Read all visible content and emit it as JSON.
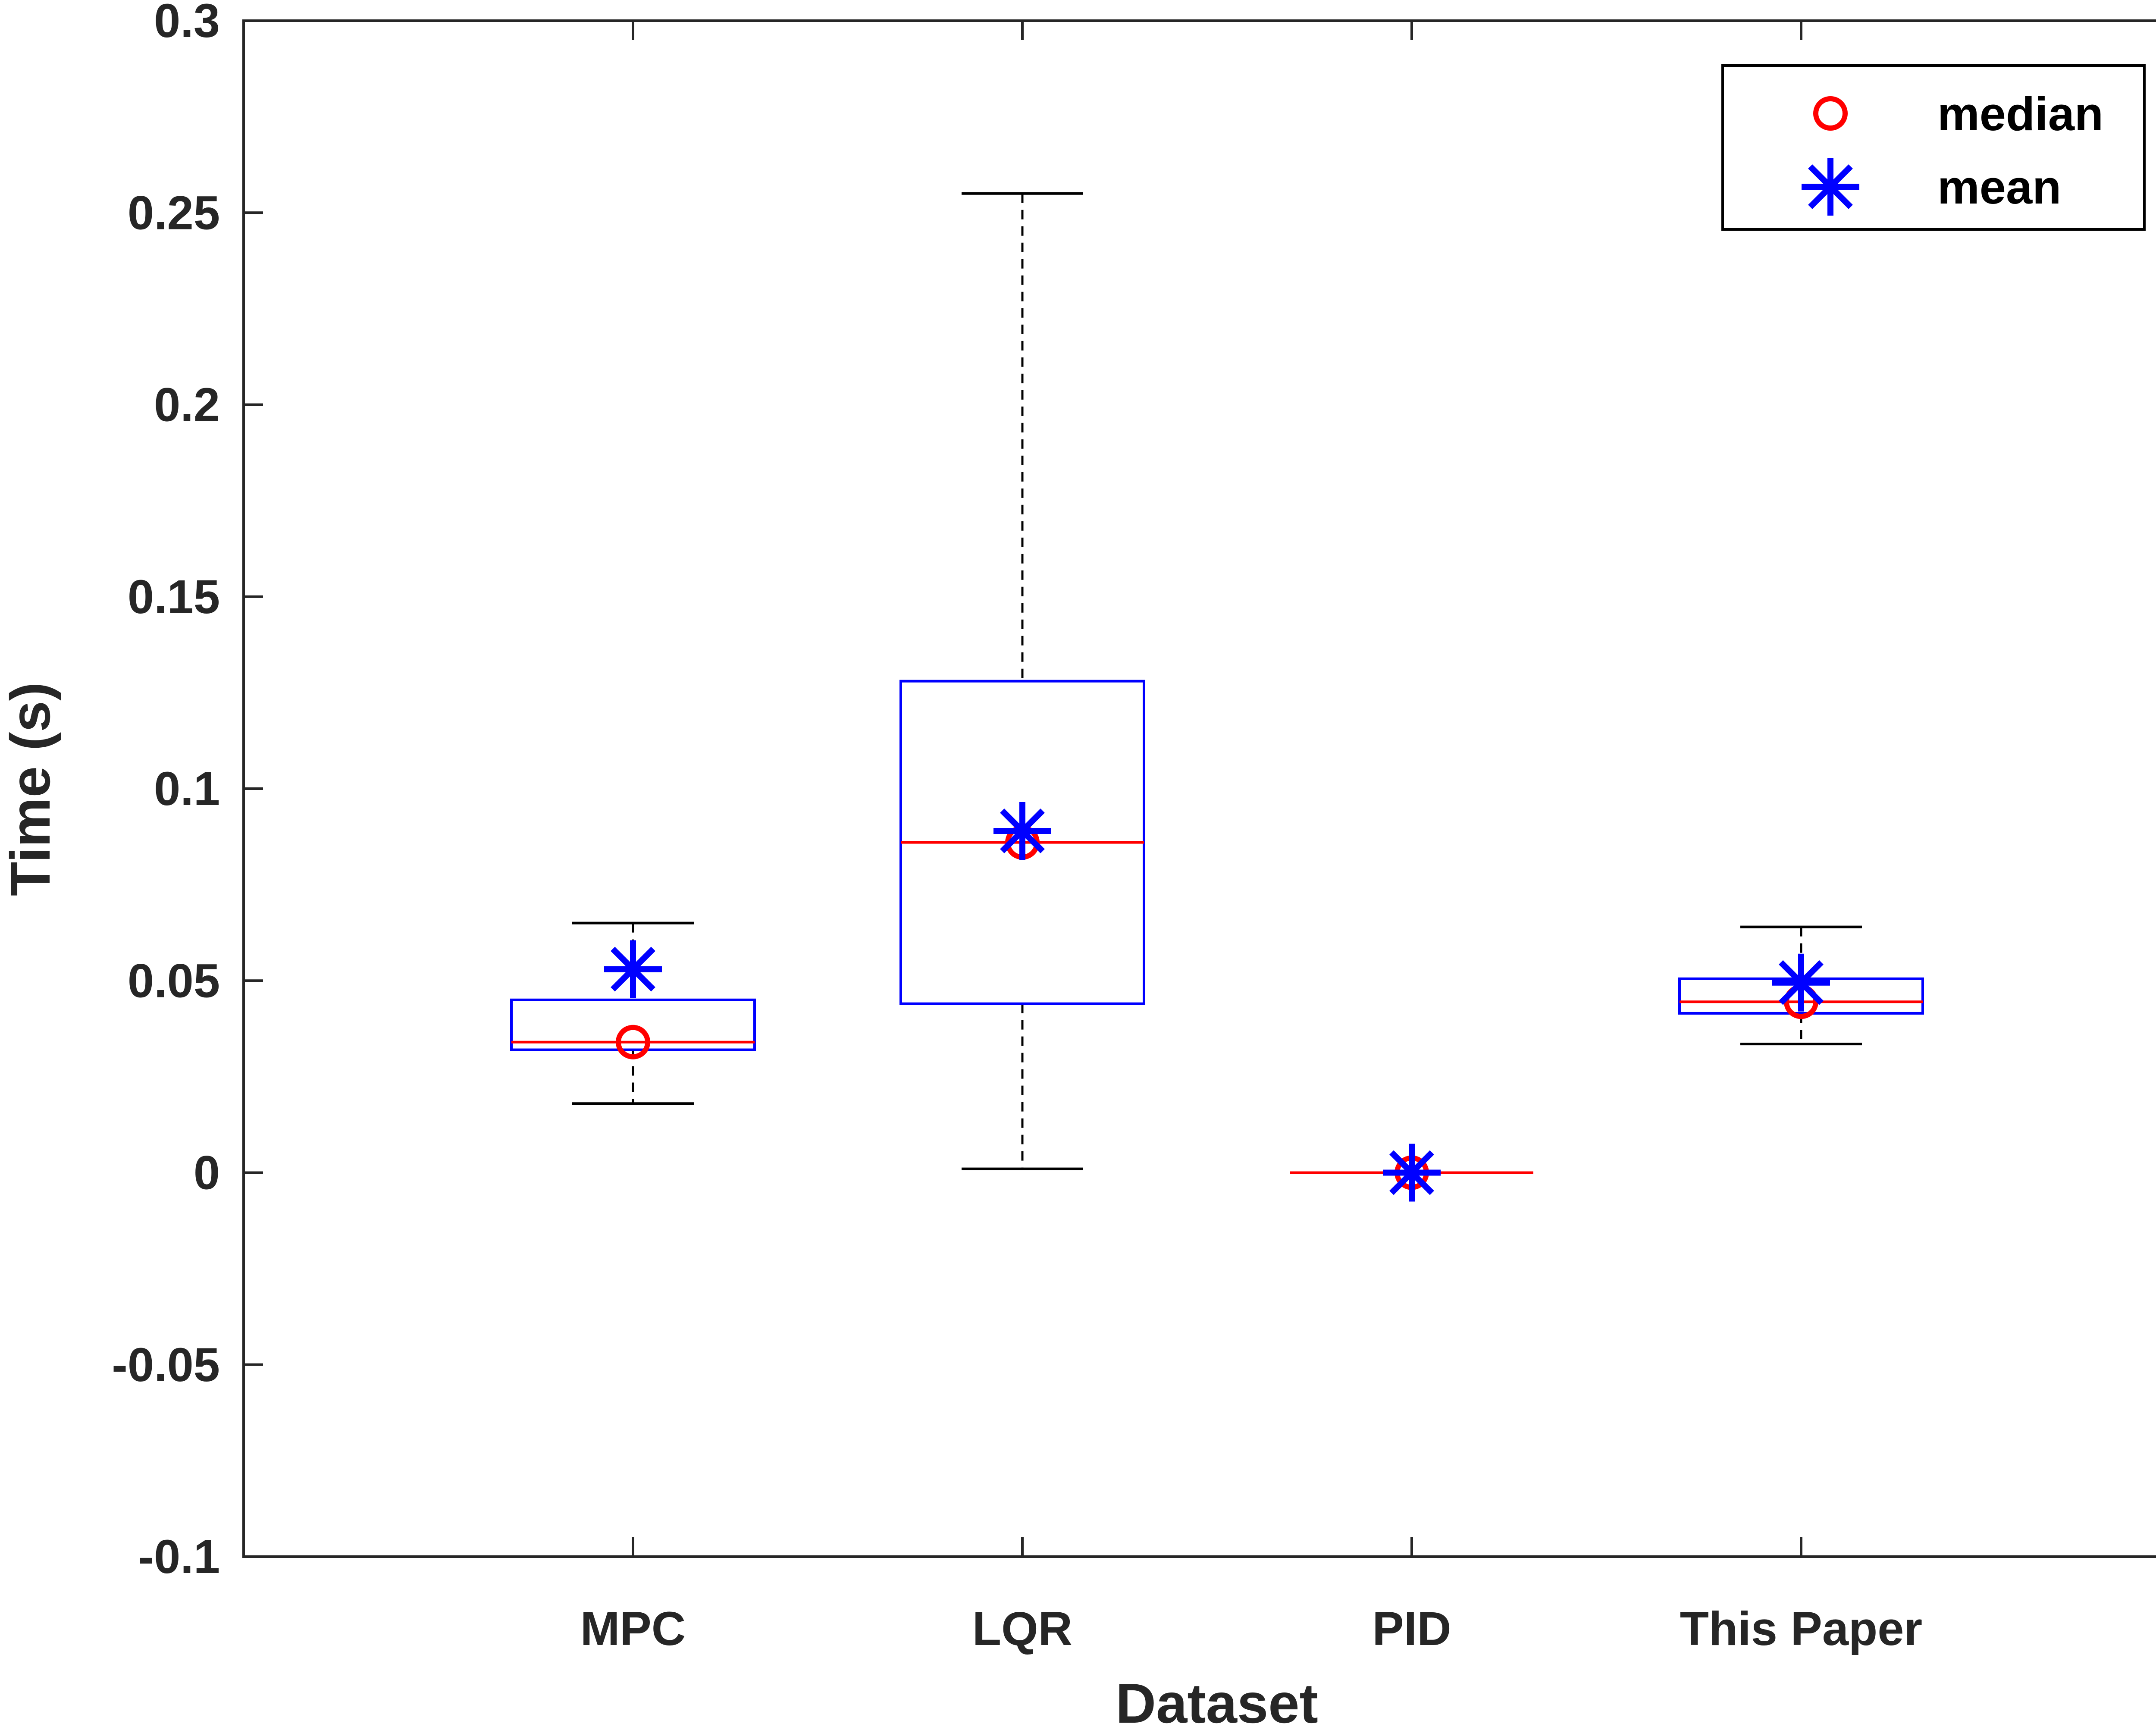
{
  "chart_data": {
    "type": "boxplot",
    "title": "",
    "xlabel": "Dataset",
    "ylabel": "Time (s)",
    "ylim": [
      -0.1,
      0.3
    ],
    "yticks": [
      -0.1,
      -0.05,
      0,
      0.05,
      0.1,
      0.15,
      0.2,
      0.25,
      0.3
    ],
    "ytick_labels": [
      "-0.1",
      "-0.05",
      "0",
      "0.05",
      "0.1",
      "0.15",
      "0.2",
      "0.25",
      "0.3"
    ],
    "categories": [
      "MPC",
      "LQR",
      "PID",
      "This Paper"
    ],
    "boxes": [
      {
        "name": "MPC",
        "whisker_low": 0.018,
        "q1": 0.032,
        "median": 0.034,
        "q3": 0.045,
        "whisker_high": 0.065,
        "mean": 0.053
      },
      {
        "name": "LQR",
        "whisker_low": 0.001,
        "q1": 0.044,
        "median": 0.086,
        "q3": 0.128,
        "whisker_high": 0.255,
        "mean": 0.089
      },
      {
        "name": "PID",
        "whisker_low": 0,
        "q1": 0,
        "median": 0,
        "q3": 0,
        "whisker_high": 0,
        "mean": 0
      },
      {
        "name": "This Paper",
        "whisker_low": 0.0335,
        "q1": 0.0415,
        "median": 0.0445,
        "q3": 0.0505,
        "whisker_high": 0.064,
        "mean": 0.0495
      }
    ],
    "legend": {
      "position": "top-right",
      "entries": [
        {
          "label": "median",
          "marker": "circle",
          "color": "#ff0000"
        },
        {
          "label": "mean",
          "marker": "asterisk",
          "color": "#0000ff"
        }
      ]
    },
    "colors": {
      "box": "#0000ff",
      "median_line": "#ff0000",
      "whisker": "#000000",
      "mean_marker": "#0000ff",
      "median_marker": "#ff0000",
      "axis": "#262626"
    }
  }
}
